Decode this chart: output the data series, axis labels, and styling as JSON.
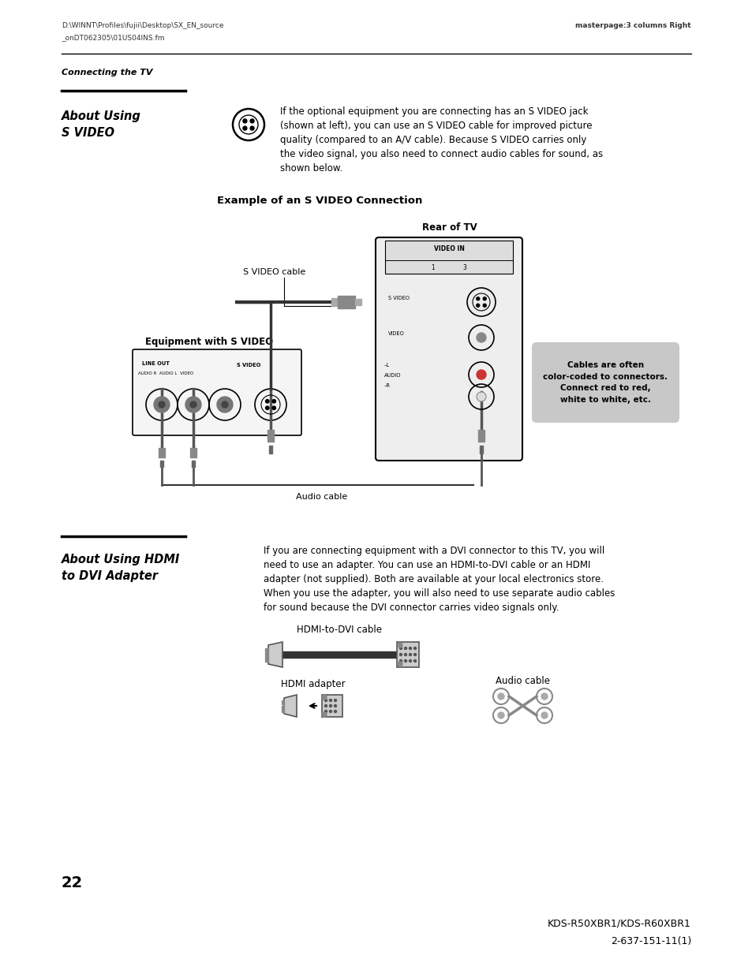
{
  "bg_color": "#ffffff",
  "page_width": 9.54,
  "page_height": 12.35,
  "header_line1": "D:\\WINNT\\Profiles\\fujii\\Desktop\\SX_EN_source",
  "header_line2": "_onDT062305\\01US04INS.fm",
  "header_right": "masterpage:3 columns Right",
  "section_label": "Connecting the TV",
  "section1_title": "About Using\nS VIDEO",
  "section1_body": "If the optional equipment you are connecting has an S VIDEO jack\n(shown at left), you can use an S VIDEO cable for improved picture\nquality (compared to an A/V cable). Because S VIDEO carries only\nthe video signal, you also need to connect audio cables for sound, as\nshown below.",
  "diagram_title": "Example of an S VIDEO Connection",
  "rear_tv_label": "Rear of TV",
  "svideo_cable_label": "S VIDEO cable",
  "equip_label": "Equipment with S VIDEO",
  "callout_text": "Cables are often\ncolor-coded to connectors.\nConnect red to red,\nwhite to white, etc.",
  "audio_cable_label": "Audio cable",
  "section2_title": "About Using HDMI\nto DVI Adapter",
  "section2_body": "If you are connecting equipment with a DVI connector to this TV, you will\nneed to use an adapter. You can use an HDMI-to-DVI cable or an HDMI\nadapter (not supplied). Both are available at your local electronics store.\nWhen you use the adapter, you will also need to use separate audio cables\nfor sound because the DVI connector carries video signals only.",
  "hdmi_dvi_label": "HDMI-to-DVI cable",
  "hdmi_adapter_label": "HDMI adapter",
  "audio_cable2_label": "Audio cable",
  "page_number": "22",
  "footer_right1": "KDS-R50XBR1/KDS-R60XBR1",
  "footer_right2": "2-637-151-11(1)"
}
